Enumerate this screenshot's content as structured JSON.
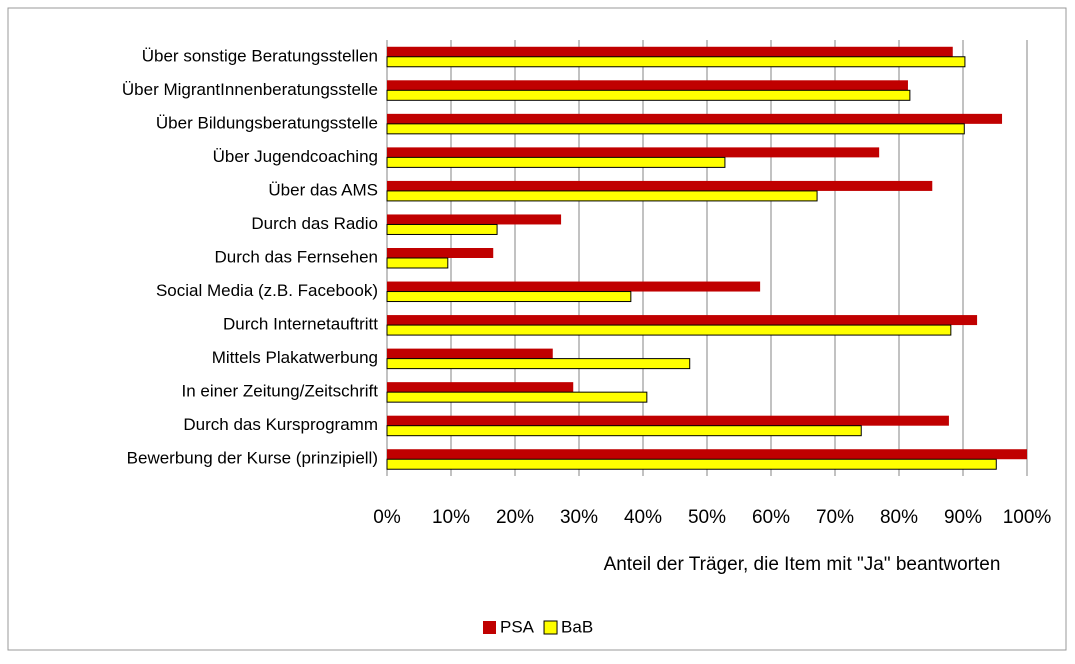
{
  "chart_data": {
    "type": "hbar",
    "xlabel": "Anteil der Träger, die Item mit \"Ja\" beantworten",
    "categories": [
      "Über sonstige Beratungsstellen",
      "Über MigrantInnenberatungsstelle",
      "Über Bildungsberatungsstelle",
      "Über Jugendcoaching",
      "Über das AMS",
      "Durch das Radio",
      "Durch das Fernsehen",
      "Social Media (z.B. Facebook)",
      "Durch Internetauftritt",
      "Mittels Plakatwerbung",
      "In einer Zeitung/Zeitschrift",
      "Durch das Kursprogramm",
      "Bewerbung der Kurse (prinzipiell)"
    ],
    "series": [
      {
        "name": "PSA",
        "color": "#c00000",
        "values": [
          88.4,
          81.4,
          96.1,
          76.9,
          85.2,
          27.2,
          16.6,
          58.3,
          92.2,
          25.9,
          29.1,
          87.8,
          100
        ]
      },
      {
        "name": "BaB",
        "color": "#ffff00",
        "values": [
          90.3,
          81.7,
          90.2,
          52.8,
          67.2,
          17.2,
          9.5,
          38.1,
          88.1,
          47.3,
          40.6,
          74.1,
          95.2
        ]
      }
    ],
    "xlim": [
      0,
      100
    ],
    "xticks": [
      {
        "value": 0,
        "label": "0%"
      },
      {
        "value": 10,
        "label": "10%"
      },
      {
        "value": 20,
        "label": "20%"
      },
      {
        "value": 30,
        "label": "30%"
      },
      {
        "value": 40,
        "label": "40%"
      },
      {
        "value": 50,
        "label": "50%"
      },
      {
        "value": 60,
        "label": "60%"
      },
      {
        "value": 70,
        "label": "70%"
      },
      {
        "value": 80,
        "label": "80%"
      },
      {
        "value": 90,
        "label": "90%"
      },
      {
        "value": 100,
        "label": "100%"
      }
    ],
    "grid": true,
    "legend": "bottom"
  }
}
